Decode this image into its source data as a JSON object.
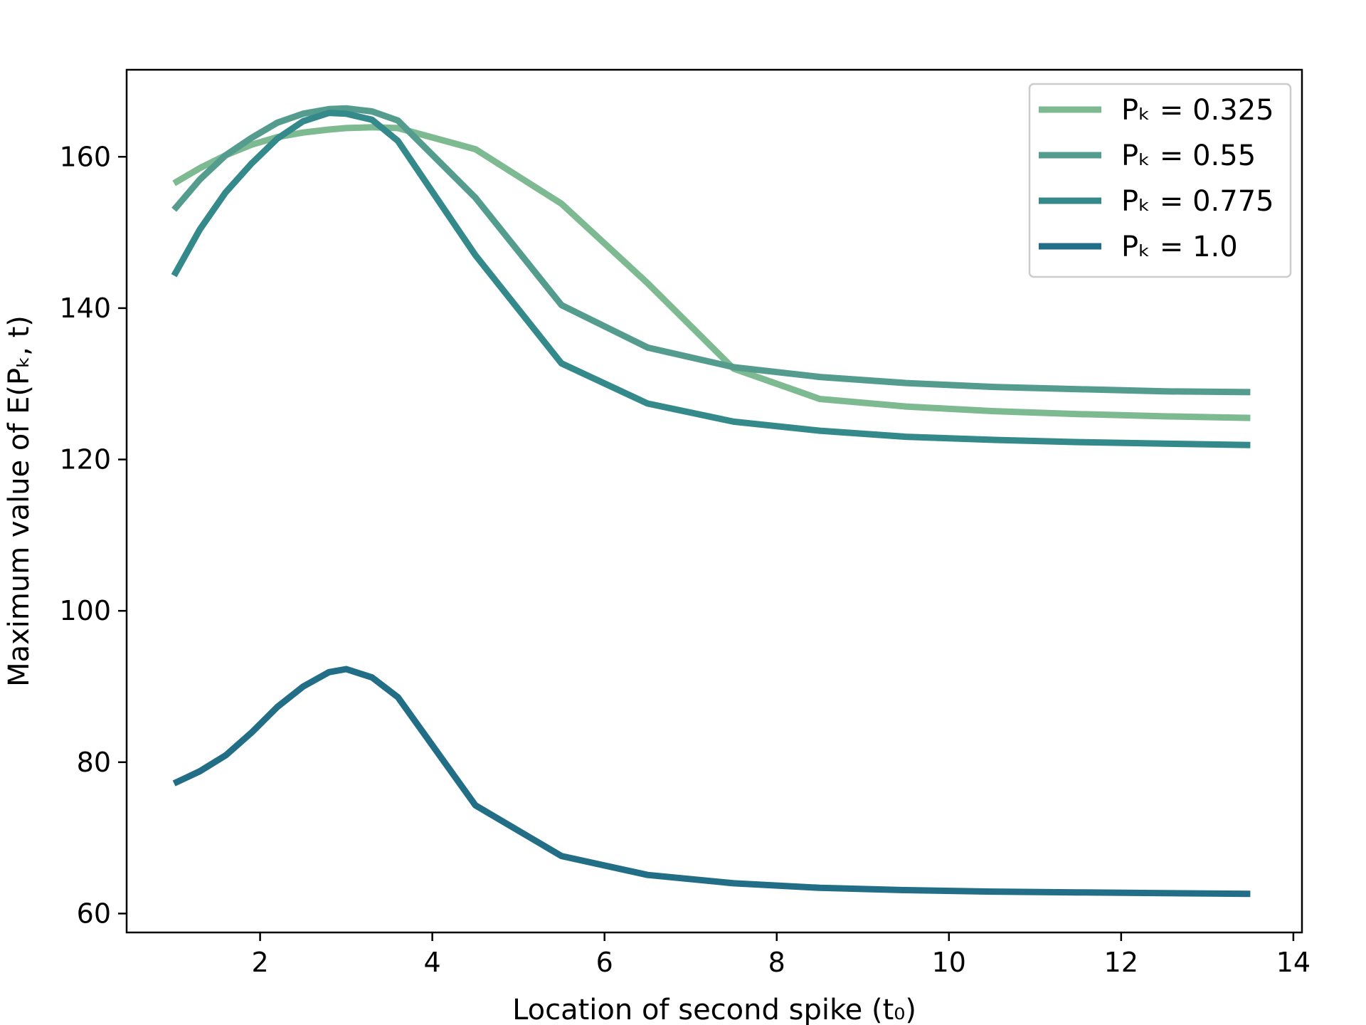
{
  "chart_data": {
    "type": "line",
    "title": "",
    "xlabel": "Location of second spike (t₀)",
    "ylabel": "Maximum value of E(Pₖ, t)",
    "xlim": [
      0.45,
      14.1
    ],
    "ylim": [
      57.5,
      171.5
    ],
    "xticks": [
      2,
      4,
      6,
      8,
      10,
      12,
      14
    ],
    "yticks": [
      60,
      80,
      100,
      120,
      140,
      160
    ],
    "grid": false,
    "legend_position": "top-right",
    "x": [
      1.0,
      1.3,
      1.6,
      1.9,
      2.2,
      2.5,
      2.8,
      3.0,
      3.3,
      3.6,
      4.5,
      5.5,
      6.5,
      7.5,
      8.5,
      9.5,
      10.5,
      11.5,
      12.5,
      13.5
    ],
    "series": [
      {
        "name": "Pₖ = 0.325",
        "color": "#7dba91",
        "values": [
          156.5,
          158.5,
          160.2,
          161.6,
          162.6,
          163.2,
          163.6,
          163.8,
          163.9,
          163.8,
          161.0,
          153.8,
          143.3,
          132.0,
          128.0,
          127.0,
          126.4,
          126.0,
          125.7,
          125.5
        ]
      },
      {
        "name": "Pₖ = 0.55",
        "color": "#549c8e",
        "values": [
          153.0,
          157.0,
          160.2,
          162.5,
          164.5,
          165.7,
          166.3,
          166.4,
          166.0,
          164.8,
          154.6,
          140.4,
          134.8,
          132.2,
          130.9,
          130.1,
          129.6,
          129.3,
          129.0,
          128.9
        ]
      },
      {
        "name": "Pₖ = 0.775",
        "color": "#348a8a",
        "values": [
          144.3,
          150.4,
          155.3,
          159.1,
          162.4,
          164.7,
          165.8,
          165.7,
          164.9,
          162.1,
          147.0,
          132.7,
          127.4,
          125.0,
          123.8,
          123.0,
          122.6,
          122.3,
          122.1,
          121.9
        ]
      },
      {
        "name": "Pₖ = 1.0",
        "color": "#236e87",
        "values": [
          77.2,
          78.8,
          80.9,
          83.9,
          87.3,
          90.0,
          91.9,
          92.3,
          91.2,
          88.6,
          74.3,
          67.6,
          65.1,
          64.0,
          63.4,
          63.1,
          62.9,
          62.8,
          62.7,
          62.6
        ]
      }
    ]
  }
}
